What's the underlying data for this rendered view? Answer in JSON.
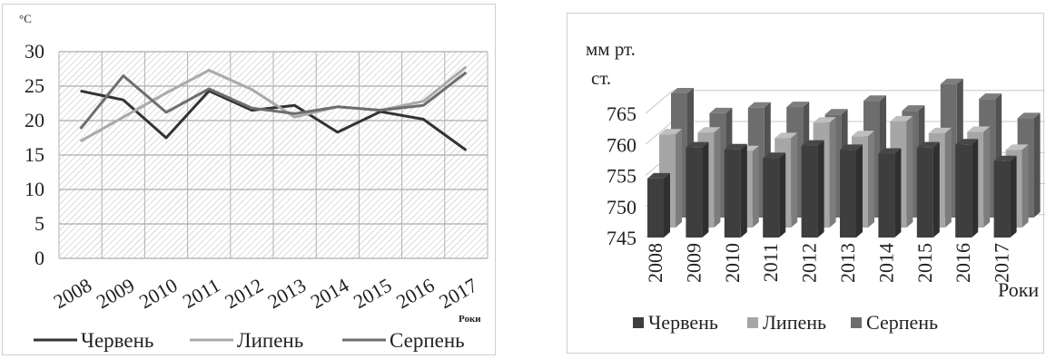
{
  "chart_data": [
    {
      "type": "line",
      "ylabel": "°C",
      "xlabel": "Роки",
      "ylim": [
        0,
        30
      ],
      "yticks": [
        0,
        5,
        10,
        15,
        20,
        25,
        30
      ],
      "categories": [
        "2008",
        "2009",
        "2010",
        "2011",
        "2012",
        "2013",
        "2014",
        "2015",
        "2016",
        "2017"
      ],
      "series": [
        {
          "name": "Червень",
          "color": "#333333",
          "values": [
            24.3,
            23.0,
            17.5,
            24.3,
            21.5,
            22.2,
            18.3,
            21.3,
            20.2,
            15.7
          ]
        },
        {
          "name": "Липень",
          "color": "#a9a9a9",
          "values": [
            17.0,
            20.5,
            24.0,
            27.3,
            24.5,
            20.5,
            22.0,
            21.5,
            22.8,
            27.8
          ]
        },
        {
          "name": "Серпень",
          "color": "#6e6e6e",
          "values": [
            18.8,
            26.5,
            21.2,
            24.6,
            21.8,
            21.0,
            22.0,
            21.5,
            22.2,
            27.0
          ]
        }
      ],
      "grid": true,
      "legend": "bottom"
    },
    {
      "type": "bar",
      "ylabel": "мм рт. ст.",
      "xlabel": "Роки",
      "ylim": [
        745,
        765
      ],
      "yticks": [
        745,
        750,
        755,
        760,
        765
      ],
      "categories": [
        "2008",
        "2009",
        "2010",
        "2011",
        "2012",
        "2013",
        "2014",
        "2015",
        "2016",
        "2017"
      ],
      "series": [
        {
          "name": "Червень",
          "color": "#3e3e3e",
          "values": [
            754.5,
            759.5,
            759.2,
            757.8,
            759.8,
            759.1,
            758.5,
            759.5,
            760.0,
            757.3
          ]
        },
        {
          "name": "Липень",
          "color": "#a6a6a6",
          "values": [
            760.0,
            760.3,
            757.3,
            759.4,
            761.9,
            759.7,
            762.1,
            760.2,
            760.4,
            757.5
          ]
        },
        {
          "name": "Серпень",
          "color": "#6d6d6d",
          "values": [
            765.0,
            761.8,
            762.7,
            762.8,
            761.6,
            763.8,
            762.2,
            766.5,
            764.1,
            761.0
          ]
        }
      ],
      "grid": true,
      "legend": "bottom"
    }
  ]
}
